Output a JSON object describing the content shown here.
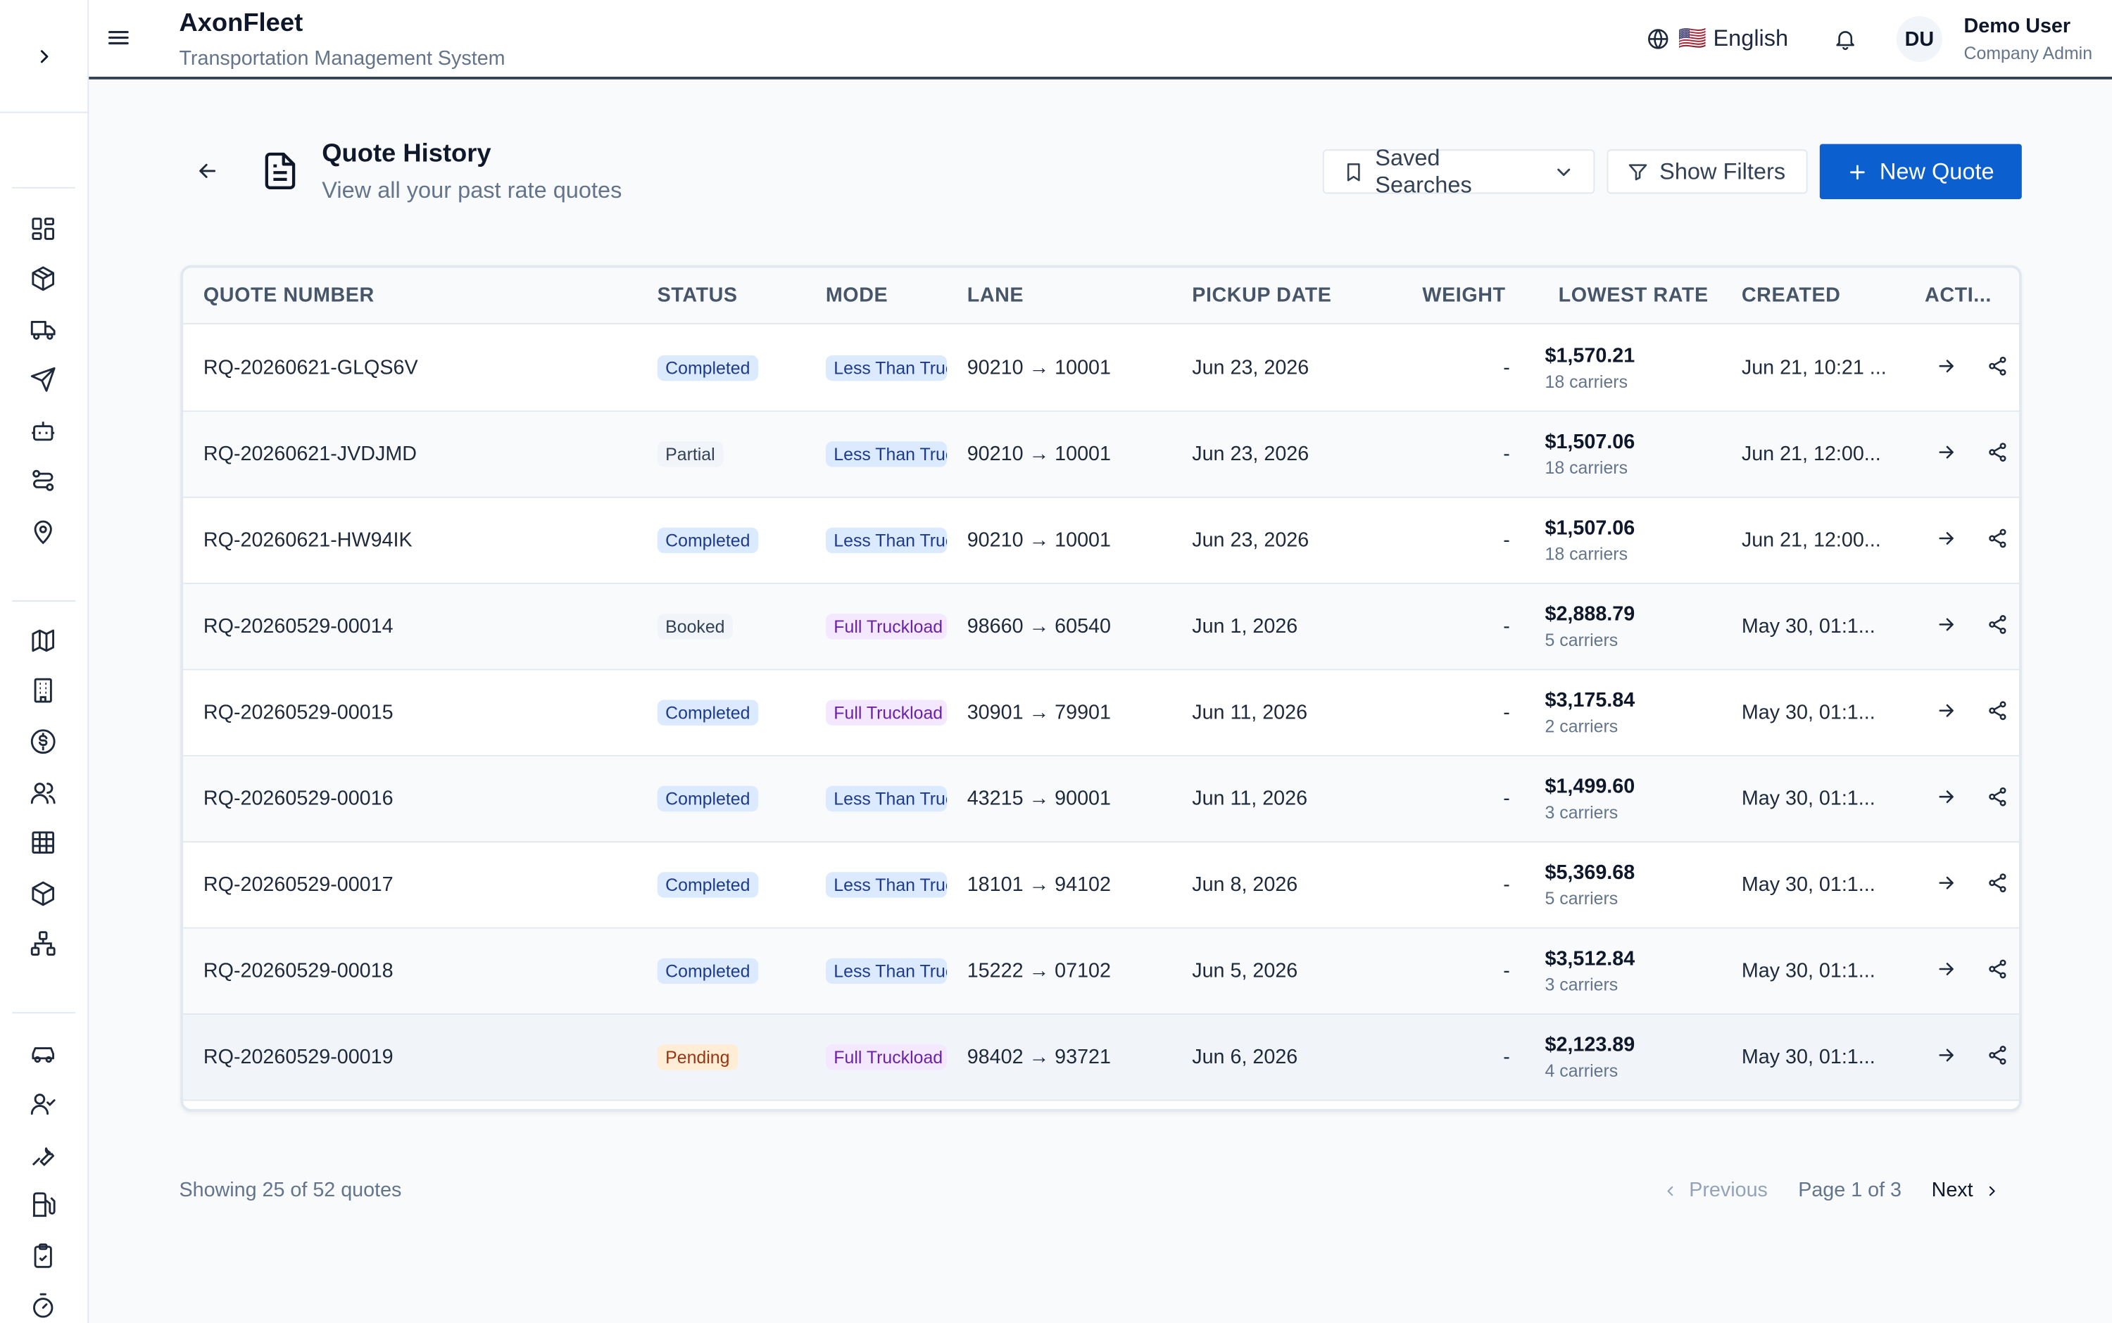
{
  "header": {
    "app_title": "AxonFleet",
    "app_subtitle": "Transportation Management System",
    "language": "🇺🇸 English",
    "avatar_initials": "DU",
    "user_name": "Demo User",
    "user_role": "Company Admin"
  },
  "sidebar": {
    "items": [
      {
        "icon": "dashboard-icon"
      },
      {
        "icon": "package-icon"
      },
      {
        "icon": "truck-icon"
      },
      {
        "icon": "send-icon"
      },
      {
        "icon": "bot-icon"
      },
      {
        "icon": "route-icon"
      },
      {
        "icon": "map-pin-icon"
      },
      {
        "icon": "map-icon"
      },
      {
        "icon": "building-icon"
      },
      {
        "icon": "dollar-icon"
      },
      {
        "icon": "users-icon"
      },
      {
        "icon": "grid-icon"
      },
      {
        "icon": "box-icon"
      },
      {
        "icon": "network-icon"
      },
      {
        "icon": "car-icon"
      },
      {
        "icon": "user-check-icon"
      },
      {
        "icon": "wrench-icon"
      },
      {
        "icon": "fuel-icon"
      },
      {
        "icon": "clipboard-check-icon"
      },
      {
        "icon": "timer-icon"
      }
    ]
  },
  "page": {
    "title": "Quote History",
    "subtitle": "View all your past rate quotes",
    "saved_searches_label": "Saved Searches",
    "show_filters_label": "Show Filters",
    "new_quote_label": "New Quote"
  },
  "table": {
    "columns": {
      "quote_number": "QUOTE NUMBER",
      "status": "STATUS",
      "mode": "MODE",
      "lane": "LANE",
      "pickup_date": "PICKUP DATE",
      "weight": "WEIGHT",
      "lowest_rate": "LOWEST RATE",
      "created": "CREATED",
      "actions": "ACTI..."
    },
    "rows": [
      {
        "quote": "RQ-20260621-GLQS6V",
        "status": "Completed",
        "status_kind": "completed",
        "mode": "Less Than Truckload",
        "mode_kind": "ltl",
        "lane": "90210 → 10001",
        "pickup": "Jun 23, 2026",
        "weight": "-",
        "rate": "$1,570.21",
        "carriers": "18 carriers",
        "created": "Jun 21, 10:21 ..."
      },
      {
        "quote": "RQ-20260621-JVDJMD",
        "status": "Partial",
        "status_kind": "partial",
        "mode": "Less Than Truckload",
        "mode_kind": "ltl",
        "lane": "90210 → 10001",
        "pickup": "Jun 23, 2026",
        "weight": "-",
        "rate": "$1,507.06",
        "carriers": "18 carriers",
        "created": "Jun 21, 12:00..."
      },
      {
        "quote": "RQ-20260621-HW94IK",
        "status": "Completed",
        "status_kind": "completed",
        "mode": "Less Than Truckload",
        "mode_kind": "ltl",
        "lane": "90210 → 10001",
        "pickup": "Jun 23, 2026",
        "weight": "-",
        "rate": "$1,507.06",
        "carriers": "18 carriers",
        "created": "Jun 21, 12:00..."
      },
      {
        "quote": "RQ-20260529-00014",
        "status": "Booked",
        "status_kind": "booked",
        "mode": "Full Truckload",
        "mode_kind": "ftl",
        "lane": "98660 → 60540",
        "pickup": "Jun 1, 2026",
        "weight": "-",
        "rate": "$2,888.79",
        "carriers": "5 carriers",
        "created": "May 30, 01:1..."
      },
      {
        "quote": "RQ-20260529-00015",
        "status": "Completed",
        "status_kind": "completed",
        "mode": "Full Truckload",
        "mode_kind": "ftl",
        "lane": "30901 → 79901",
        "pickup": "Jun 11, 2026",
        "weight": "-",
        "rate": "$3,175.84",
        "carriers": "2 carriers",
        "created": "May 30, 01:1..."
      },
      {
        "quote": "RQ-20260529-00016",
        "status": "Completed",
        "status_kind": "completed",
        "mode": "Less Than Truckload",
        "mode_kind": "ltl",
        "lane": "43215 → 90001",
        "pickup": "Jun 11, 2026",
        "weight": "-",
        "rate": "$1,499.60",
        "carriers": "3 carriers",
        "created": "May 30, 01:1..."
      },
      {
        "quote": "RQ-20260529-00017",
        "status": "Completed",
        "status_kind": "completed",
        "mode": "Less Than Truckload",
        "mode_kind": "ltl",
        "lane": "18101 → 94102",
        "pickup": "Jun 8, 2026",
        "weight": "-",
        "rate": "$5,369.68",
        "carriers": "5 carriers",
        "created": "May 30, 01:1..."
      },
      {
        "quote": "RQ-20260529-00018",
        "status": "Completed",
        "status_kind": "completed",
        "mode": "Less Than Truckload",
        "mode_kind": "ltl",
        "lane": "15222 → 07102",
        "pickup": "Jun 5, 2026",
        "weight": "-",
        "rate": "$3,512.84",
        "carriers": "3 carriers",
        "created": "May 30, 01:1..."
      },
      {
        "quote": "RQ-20260529-00019",
        "status": "Pending",
        "status_kind": "pending",
        "mode": "Full Truckload",
        "mode_kind": "ftl",
        "lane": "98402 → 93721",
        "pickup": "Jun 6, 2026",
        "weight": "-",
        "rate": "$2,123.89",
        "carriers": "4 carriers",
        "created": "May 30, 01:1..."
      }
    ]
  },
  "pagination": {
    "showing": "Showing 25 of 52 quotes",
    "previous": "Previous",
    "page_info": "Page 1 of 3",
    "next": "Next"
  },
  "colors": {
    "primary": "#0b5fcf",
    "completed_badge": "#dbeafe",
    "pending_badge": "#ffedd5",
    "ftl_badge": "#f3e8ff"
  }
}
